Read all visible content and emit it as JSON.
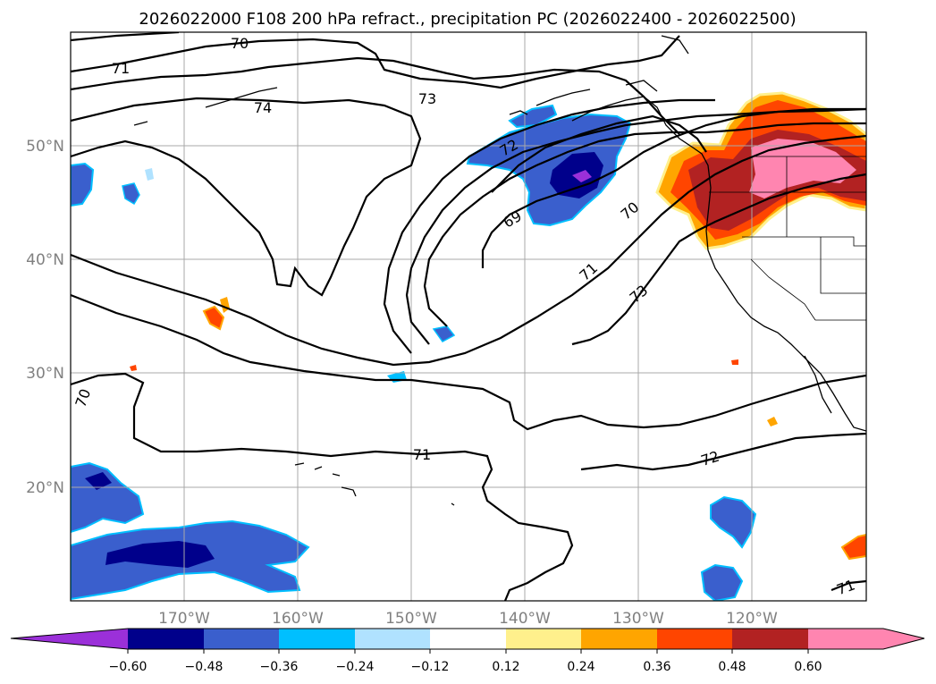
{
  "title": "2026022000 F108 200 hPa refract., precipitation PC (2026022400 - 2026022500)",
  "map": {
    "lon_ticks": [
      "170°W",
      "160°W",
      "150°W",
      "140°W",
      "130°W",
      "120°W"
    ],
    "lat_ticks": [
      "50°N",
      "40°N",
      "30°N",
      "20°N"
    ],
    "contour_labels": [
      "70",
      "71",
      "74",
      "73",
      "72",
      "69",
      "70",
      "71",
      "73",
      "70",
      "71",
      "72",
      "71"
    ]
  },
  "colorbar": {
    "ticks": [
      "−0.60",
      "−0.48",
      "−0.36",
      "−0.24",
      "−0.12",
      "0.12",
      "0.24",
      "0.36",
      "0.48",
      "0.60"
    ],
    "colors": [
      "#9b30d9",
      "#00008b",
      "#3a5fcd",
      "#00bfff",
      "#b0e2ff",
      "#ffffff",
      "#fff08c",
      "#ffa500",
      "#ff4500",
      "#b22222",
      "#ff85b0",
      "#ff85b0"
    ]
  },
  "colors": {
    "coast": "#000000",
    "grid": "#a9a9a9",
    "contour": "#000000"
  }
}
